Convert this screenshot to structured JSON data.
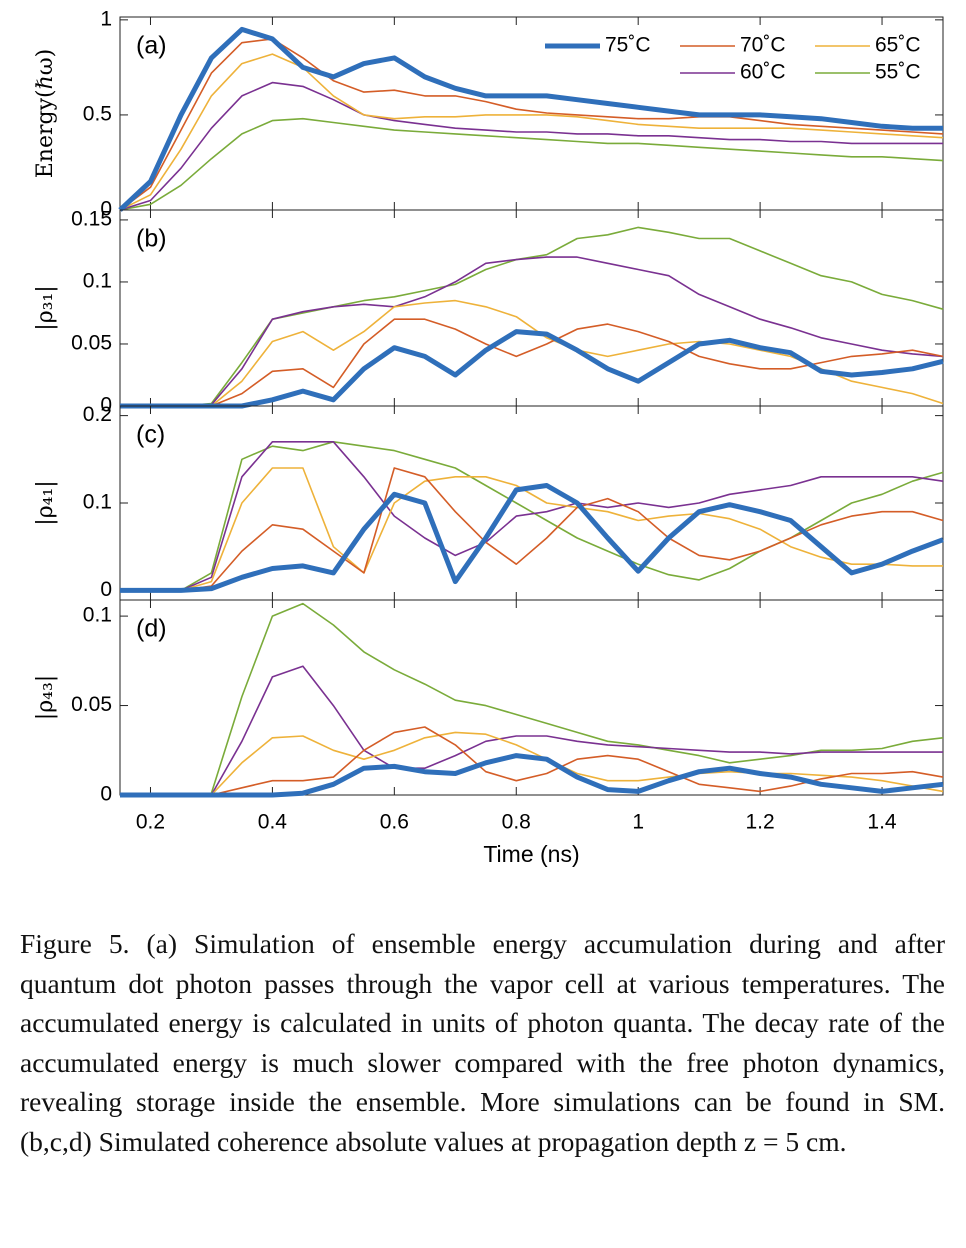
{
  "chart_data": [
    {
      "type": "line",
      "label": "(a)",
      "ylabel": "Energy(ℏω)",
      "x": [
        0.15,
        0.2,
        0.25,
        0.3,
        0.35,
        0.4,
        0.45,
        0.5,
        0.55,
        0.6,
        0.65,
        0.7,
        0.75,
        0.8,
        0.85,
        0.9,
        0.95,
        1.0,
        1.05,
        1.1,
        1.15,
        1.2,
        1.25,
        1.3,
        1.35,
        1.4,
        1.45,
        1.5
      ],
      "xlim": [
        0.15,
        1.5
      ],
      "xticks": [
        0.2,
        0.4,
        0.6,
        0.8,
        1,
        1.2,
        1.4
      ],
      "ylim": [
        0,
        1.015
      ],
      "yticks": [
        0,
        0.5,
        1
      ],
      "legend": "upper right",
      "series": [
        {
          "name": "75˚C",
          "color": "#2f6fba",
          "values": [
            0,
            0.15,
            0.5,
            0.8,
            0.95,
            0.9,
            0.75,
            0.7,
            0.77,
            0.8,
            0.7,
            0.64,
            0.6,
            0.6,
            0.6,
            0.58,
            0.56,
            0.54,
            0.52,
            0.5,
            0.5,
            0.5,
            0.49,
            0.48,
            0.46,
            0.44,
            0.43,
            0.43
          ]
        },
        {
          "name": "70˚C",
          "color": "#d45d27",
          "values": [
            0,
            0.12,
            0.42,
            0.72,
            0.88,
            0.9,
            0.8,
            0.68,
            0.62,
            0.63,
            0.6,
            0.6,
            0.57,
            0.53,
            0.51,
            0.5,
            0.49,
            0.48,
            0.48,
            0.49,
            0.49,
            0.47,
            0.45,
            0.44,
            0.43,
            0.42,
            0.41,
            0.4
          ]
        },
        {
          "name": "65˚C",
          "color": "#eeb23a",
          "values": [
            0,
            0.08,
            0.32,
            0.6,
            0.77,
            0.82,
            0.75,
            0.6,
            0.5,
            0.48,
            0.49,
            0.49,
            0.5,
            0.5,
            0.5,
            0.49,
            0.47,
            0.45,
            0.44,
            0.43,
            0.43,
            0.43,
            0.43,
            0.42,
            0.41,
            0.4,
            0.39,
            0.38
          ]
        },
        {
          "name": "60˚C",
          "color": "#7a3191",
          "values": [
            0,
            0.05,
            0.22,
            0.43,
            0.6,
            0.67,
            0.65,
            0.58,
            0.5,
            0.47,
            0.45,
            0.43,
            0.42,
            0.41,
            0.41,
            0.4,
            0.4,
            0.39,
            0.39,
            0.38,
            0.37,
            0.37,
            0.36,
            0.36,
            0.35,
            0.35,
            0.35,
            0.35
          ]
        },
        {
          "name": "55˚C",
          "color": "#7aab3a",
          "values": [
            0,
            0.03,
            0.13,
            0.27,
            0.4,
            0.47,
            0.48,
            0.46,
            0.44,
            0.42,
            0.41,
            0.4,
            0.39,
            0.38,
            0.37,
            0.36,
            0.35,
            0.35,
            0.34,
            0.33,
            0.32,
            0.31,
            0.3,
            0.29,
            0.28,
            0.28,
            0.27,
            0.26
          ]
        }
      ]
    },
    {
      "type": "line",
      "label": "(b)",
      "ylabel": "|ρ₃₁|",
      "x": [
        0.15,
        0.2,
        0.25,
        0.3,
        0.35,
        0.4,
        0.45,
        0.5,
        0.55,
        0.6,
        0.65,
        0.7,
        0.75,
        0.8,
        0.85,
        0.9,
        0.95,
        1.0,
        1.05,
        1.1,
        1.15,
        1.2,
        1.25,
        1.3,
        1.35,
        1.4,
        1.45,
        1.5
      ],
      "xlim": [
        0.15,
        1.5
      ],
      "xticks": [
        0.2,
        0.4,
        0.6,
        0.8,
        1,
        1.2,
        1.4
      ],
      "ylim": [
        0,
        0.158
      ],
      "yticks": [
        0,
        0.05,
        0.1,
        0.15
      ],
      "series": [
        {
          "color": "#2f6fba",
          "values": [
            0,
            0,
            0,
            0,
            0,
            0.005,
            0.012,
            0.005,
            0.03,
            0.047,
            0.04,
            0.025,
            0.045,
            0.06,
            0.058,
            0.045,
            0.03,
            0.02,
            0.035,
            0.05,
            0.053,
            0.047,
            0.043,
            0.028,
            0.025,
            0.027,
            0.03,
            0.036
          ]
        },
        {
          "color": "#d45d27",
          "values": [
            0,
            0,
            0,
            0,
            0.01,
            0.028,
            0.03,
            0.015,
            0.05,
            0.07,
            0.07,
            0.062,
            0.05,
            0.04,
            0.05,
            0.062,
            0.066,
            0.06,
            0.052,
            0.04,
            0.034,
            0.03,
            0.03,
            0.035,
            0.04,
            0.042,
            0.045,
            0.04
          ]
        },
        {
          "color": "#eeb23a",
          "values": [
            0,
            0,
            0,
            0,
            0.02,
            0.052,
            0.06,
            0.045,
            0.06,
            0.08,
            0.083,
            0.085,
            0.08,
            0.072,
            0.055,
            0.045,
            0.04,
            0.045,
            0.05,
            0.052,
            0.05,
            0.045,
            0.04,
            0.03,
            0.02,
            0.015,
            0.01,
            0.002
          ]
        },
        {
          "color": "#7a3191",
          "values": [
            0,
            0,
            0,
            0.001,
            0.03,
            0.07,
            0.076,
            0.08,
            0.082,
            0.08,
            0.088,
            0.1,
            0.115,
            0.118,
            0.12,
            0.12,
            0.115,
            0.11,
            0.105,
            0.09,
            0.08,
            0.07,
            0.063,
            0.055,
            0.05,
            0.045,
            0.042,
            0.04
          ]
        },
        {
          "color": "#7aab3a",
          "values": [
            0,
            0,
            0,
            0.002,
            0.035,
            0.07,
            0.075,
            0.08,
            0.085,
            0.088,
            0.093,
            0.098,
            0.11,
            0.118,
            0.122,
            0.135,
            0.138,
            0.144,
            0.14,
            0.135,
            0.135,
            0.125,
            0.115,
            0.105,
            0.1,
            0.09,
            0.085,
            0.078
          ]
        }
      ]
    },
    {
      "type": "line",
      "label": "(c)",
      "ylabel": "|ρ₄₁|",
      "x": [
        0.15,
        0.2,
        0.25,
        0.3,
        0.35,
        0.4,
        0.45,
        0.5,
        0.55,
        0.6,
        0.65,
        0.7,
        0.75,
        0.8,
        0.85,
        0.9,
        0.95,
        1.0,
        1.05,
        1.1,
        1.15,
        1.2,
        1.25,
        1.3,
        1.35,
        1.4,
        1.45,
        1.5
      ],
      "xlim": [
        0.15,
        1.5
      ],
      "xticks": [
        0.2,
        0.4,
        0.6,
        0.8,
        1,
        1.2,
        1.4
      ],
      "ylim": [
        -0.011,
        0.211
      ],
      "yticks": [
        0,
        0.1,
        0.2
      ],
      "series": [
        {
          "color": "#2f6fba",
          "values": [
            0,
            0,
            0,
            0.002,
            0.015,
            0.025,
            0.028,
            0.02,
            0.07,
            0.11,
            0.1,
            0.01,
            0.06,
            0.115,
            0.12,
            0.1,
            0.06,
            0.022,
            0.06,
            0.09,
            0.098,
            0.09,
            0.08,
            0.05,
            0.02,
            0.03,
            0.045,
            0.058
          ]
        },
        {
          "color": "#d45d27",
          "values": [
            0,
            0,
            0,
            0.005,
            0.045,
            0.075,
            0.07,
            0.045,
            0.02,
            0.14,
            0.13,
            0.09,
            0.055,
            0.03,
            0.06,
            0.095,
            0.105,
            0.09,
            0.06,
            0.04,
            0.035,
            0.045,
            0.06,
            0.075,
            0.085,
            0.09,
            0.09,
            0.08
          ]
        },
        {
          "color": "#eeb23a",
          "values": [
            0,
            0,
            0,
            0.01,
            0.1,
            0.14,
            0.14,
            0.05,
            0.02,
            0.1,
            0.125,
            0.13,
            0.13,
            0.12,
            0.1,
            0.095,
            0.09,
            0.08,
            0.085,
            0.088,
            0.082,
            0.07,
            0.05,
            0.038,
            0.03,
            0.03,
            0.028,
            0.028
          ]
        },
        {
          "color": "#7a3191",
          "values": [
            0,
            0,
            0,
            0.015,
            0.13,
            0.17,
            0.17,
            0.17,
            0.13,
            0.085,
            0.06,
            0.04,
            0.055,
            0.085,
            0.09,
            0.1,
            0.095,
            0.1,
            0.095,
            0.1,
            0.11,
            0.115,
            0.12,
            0.13,
            0.13,
            0.13,
            0.13,
            0.125
          ]
        },
        {
          "color": "#7aab3a",
          "values": [
            0,
            0,
            0,
            0.02,
            0.15,
            0.165,
            0.16,
            0.17,
            0.165,
            0.16,
            0.15,
            0.14,
            0.12,
            0.1,
            0.08,
            0.06,
            0.045,
            0.03,
            0.018,
            0.012,
            0.025,
            0.045,
            0.06,
            0.08,
            0.1,
            0.11,
            0.125,
            0.135
          ]
        }
      ]
    },
    {
      "type": "line",
      "label": "(d)",
      "ylabel": "|ρ₄₃|",
      "xlabel": "Time (ns)",
      "x": [
        0.15,
        0.2,
        0.25,
        0.3,
        0.35,
        0.4,
        0.45,
        0.5,
        0.55,
        0.6,
        0.65,
        0.7,
        0.75,
        0.8,
        0.85,
        0.9,
        0.95,
        1.0,
        1.05,
        1.1,
        1.15,
        1.2,
        1.25,
        1.3,
        1.35,
        1.4,
        1.45,
        1.5
      ],
      "xlim": [
        0.15,
        1.5
      ],
      "xticks": [
        0.2,
        0.4,
        0.6,
        0.8,
        1,
        1.2,
        1.4
      ],
      "ylim": [
        0,
        0.109
      ],
      "yticks": [
        0,
        0.05,
        0.1
      ],
      "series": [
        {
          "color": "#2f6fba",
          "values": [
            0,
            0,
            0,
            0,
            0,
            0,
            0.001,
            0.006,
            0.015,
            0.016,
            0.013,
            0.012,
            0.018,
            0.022,
            0.02,
            0.01,
            0.003,
            0.002,
            0.008,
            0.013,
            0.015,
            0.012,
            0.01,
            0.006,
            0.004,
            0.002,
            0.004,
            0.006
          ]
        },
        {
          "color": "#d45d27",
          "values": [
            0,
            0,
            0,
            0,
            0.004,
            0.008,
            0.008,
            0.01,
            0.025,
            0.035,
            0.038,
            0.028,
            0.013,
            0.008,
            0.012,
            0.02,
            0.022,
            0.02,
            0.013,
            0.006,
            0.004,
            0.002,
            0.005,
            0.009,
            0.012,
            0.012,
            0.013,
            0.01
          ]
        },
        {
          "color": "#eeb23a",
          "values": [
            0,
            0,
            0,
            0,
            0.018,
            0.032,
            0.033,
            0.025,
            0.02,
            0.025,
            0.032,
            0.035,
            0.034,
            0.028,
            0.02,
            0.012,
            0.008,
            0.008,
            0.01,
            0.012,
            0.013,
            0.012,
            0.012,
            0.011,
            0.01,
            0.008,
            0.005,
            0.002
          ]
        },
        {
          "color": "#7a3191",
          "values": [
            0,
            0,
            0,
            0,
            0.03,
            0.066,
            0.072,
            0.05,
            0.025,
            0.015,
            0.015,
            0.022,
            0.03,
            0.033,
            0.033,
            0.03,
            0.028,
            0.027,
            0.026,
            0.025,
            0.024,
            0.024,
            0.023,
            0.024,
            0.024,
            0.024,
            0.024,
            0.024
          ]
        },
        {
          "color": "#7aab3a",
          "values": [
            0,
            0,
            0,
            0.001,
            0.055,
            0.1,
            0.107,
            0.095,
            0.08,
            0.07,
            0.062,
            0.053,
            0.05,
            0.045,
            0.04,
            0.035,
            0.03,
            0.028,
            0.025,
            0.022,
            0.018,
            0.02,
            0.022,
            0.025,
            0.025,
            0.026,
            0.03,
            0.032
          ]
        }
      ]
    }
  ],
  "caption": "Figure 5. (a) Simulation of ensemble energy accumulation during and after quantum dot photon passes through the vapor cell at various temperatures. The accumulated energy is calculated in units of photon quanta. The decay rate of the accumulated energy is much slower compared with the free photon dynamics, revealing storage inside the ensemble. More simulations can be found in SM. (b,c,d) Simulated coherence absolute values at propagation depth z = 5 cm."
}
